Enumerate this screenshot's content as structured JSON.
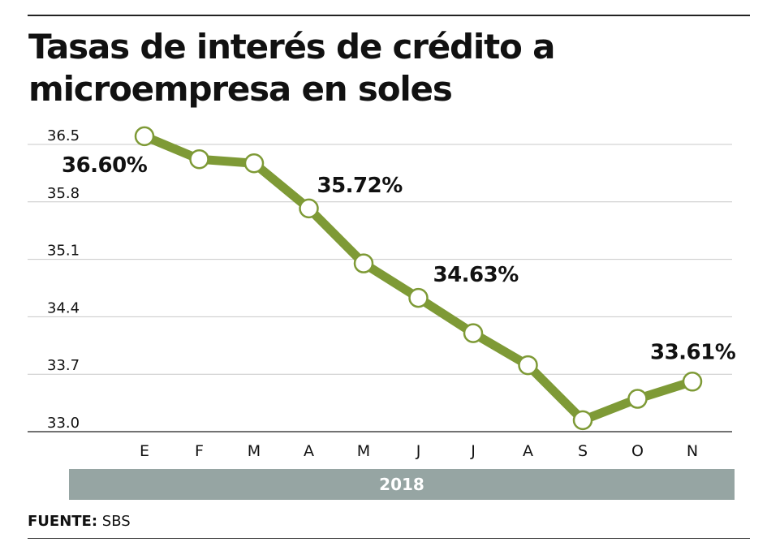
{
  "title": "Tasas de interés de crédito a microempresa en soles",
  "year_label": "2018",
  "source": {
    "label": "FUENTE:",
    "value": "SBS"
  },
  "style": {
    "line_color": "#7e9a36",
    "band_color": "#96a5a3",
    "grid_color": "#c8c8c8"
  },
  "chart_data": {
    "type": "line",
    "title": "Tasas de interés de crédito a microempresa en soles",
    "xlabel": "2018",
    "ylabel": "",
    "categories": [
      "E",
      "F",
      "M",
      "A",
      "M",
      "J",
      "J",
      "A",
      "S",
      "O",
      "N"
    ],
    "series": [
      {
        "values": [
          36.6,
          36.32,
          36.27,
          35.72,
          35.05,
          34.63,
          34.2,
          33.81,
          33.14,
          33.4,
          33.61
        ]
      }
    ],
    "yticks": [
      "36.5",
      "35.8",
      "35.1",
      "34.4",
      "33.7",
      "33.0"
    ],
    "ylim": [
      33.0,
      36.5
    ],
    "grid": true,
    "data_labels": [
      {
        "index": 0,
        "text": "36.60%"
      },
      {
        "index": 3,
        "text": "35.72%"
      },
      {
        "index": 5,
        "text": "34.63%"
      },
      {
        "index": 10,
        "text": "33.61%"
      }
    ]
  }
}
